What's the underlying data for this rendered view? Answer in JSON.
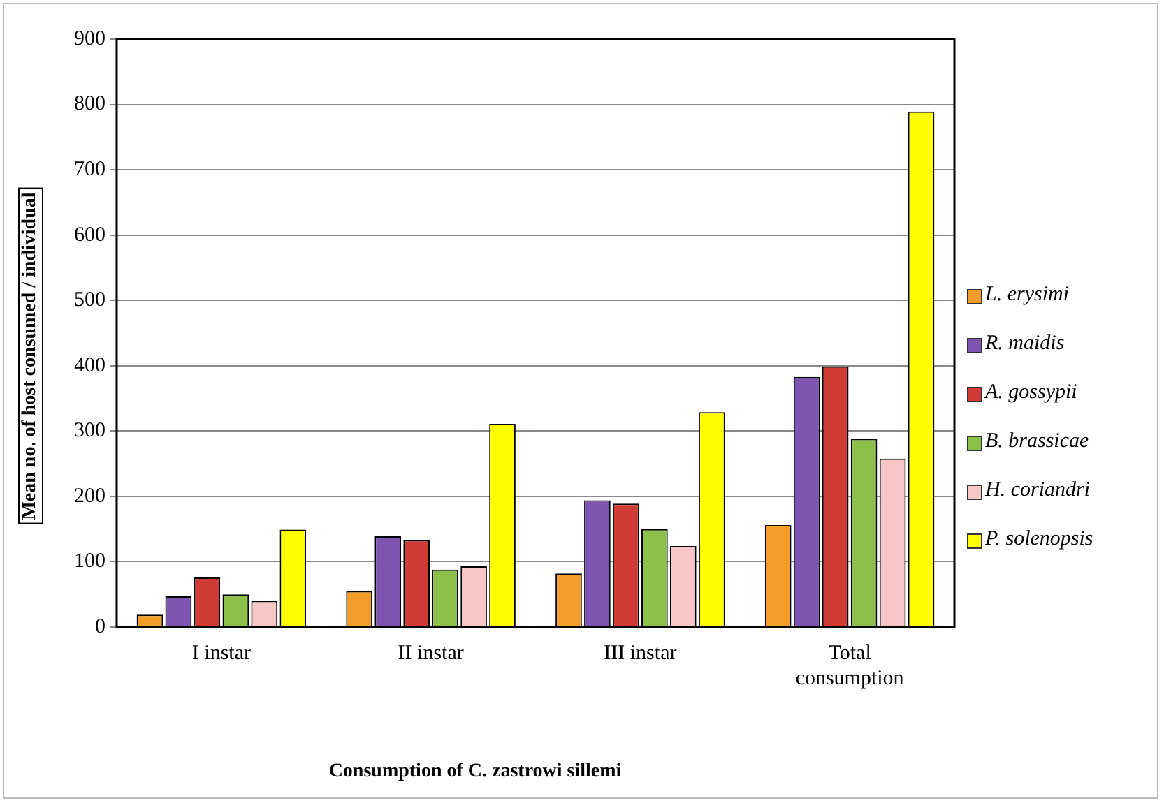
{
  "chart_data": {
    "type": "bar",
    "xlabel": "Consumption  of C. zastrowi sillemi",
    "ylabel": "Mean no. of host consumed / individual",
    "categories": [
      "I instar",
      "II instar",
      "III instar",
      "Total consumption"
    ],
    "series": [
      {
        "name": "L. erysimi",
        "color": "#f39c2a",
        "values": [
          19,
          55,
          82,
          156
        ]
      },
      {
        "name": "R. maidis",
        "color": "#7d55b0",
        "values": [
          47,
          139,
          194,
          383
        ]
      },
      {
        "name": "A. gossypii",
        "color": "#d13b35",
        "values": [
          76,
          133,
          189,
          399
        ]
      },
      {
        "name": "B. brassicae",
        "color": "#8cc04a",
        "values": [
          50,
          88,
          150,
          288
        ]
      },
      {
        "name": "H. coriandri",
        "color": "#f7c6c6",
        "values": [
          40,
          93,
          124,
          258
        ]
      },
      {
        "name": "P. solenopsis",
        "color": "#ffff00",
        "values": [
          149,
          311,
          329,
          789
        ]
      }
    ],
    "ylim": [
      0,
      900
    ],
    "yticks": [
      0,
      100,
      200,
      300,
      400,
      500,
      600,
      700,
      800,
      900
    ],
    "grid": "y",
    "legend": "right"
  }
}
